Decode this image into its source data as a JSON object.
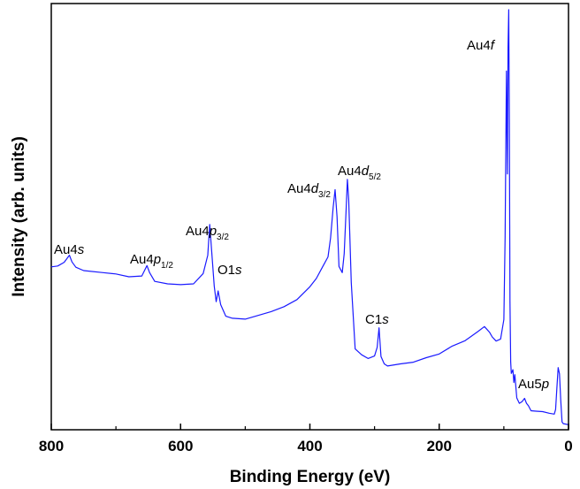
{
  "chart_data": {
    "type": "line",
    "xlabel": "Binding Energy (eV)",
    "ylabel": "Intensity (arb. units)",
    "xlim": [
      800,
      0
    ],
    "x_reversed": true,
    "ylim": [
      0,
      100
    ],
    "y_ticks_shown": false,
    "grid": false,
    "x_ticks": [
      800,
      600,
      400,
      200,
      0
    ],
    "x_tick_labels": [
      "800",
      "600",
      "400",
      "200",
      "0"
    ],
    "series": [
      {
        "color": "#1a1aff",
        "x": [
          800,
          790,
          780,
          772,
          768,
          762,
          750,
          720,
          700,
          680,
          660,
          652,
          648,
          640,
          620,
          600,
          580,
          565,
          558,
          555,
          552,
          548,
          545,
          542,
          538,
          530,
          520,
          500,
          480,
          460,
          440,
          420,
          400,
          390,
          380,
          372,
          368,
          364,
          361,
          358,
          355,
          350,
          347,
          344,
          342,
          340,
          336,
          330,
          320,
          310,
          300,
          296,
          293,
          290,
          285,
          280,
          260,
          240,
          220,
          200,
          180,
          160,
          140,
          130,
          122,
          118,
          112,
          105,
          100,
          98,
          96,
          94.5,
          93.5,
          92.5,
          91.5,
          90.5,
          89.5,
          88.5,
          86,
          84.5,
          83,
          80,
          76,
          72,
          68,
          65,
          62,
          58,
          50,
          40,
          30,
          22,
          20,
          18,
          16,
          14,
          12,
          10,
          8,
          5,
          2,
          0
        ],
        "y": [
          38.0,
          38.2,
          39.1,
          40.8,
          39.2,
          37.9,
          37.1,
          36.6,
          36.3,
          35.6,
          35.8,
          38.3,
          36.6,
          34.5,
          33.9,
          33.7,
          33.9,
          36.4,
          40.8,
          48.2,
          42.1,
          33.4,
          29.6,
          32.2,
          28.9,
          26.1,
          25.6,
          25.4,
          26.3,
          27.2,
          28.4,
          30.1,
          33.2,
          35.2,
          38.1,
          40.4,
          45.0,
          52.3,
          56.6,
          50.1,
          38.1,
          36.6,
          41.2,
          51.4,
          59.1,
          54.2,
          34.2,
          18.2,
          16.8,
          15.9,
          16.5,
          18.6,
          23.3,
          16.4,
          14.6,
          14.1,
          14.6,
          15.0,
          16.1,
          17.0,
          18.9,
          20.2,
          22.4,
          23.6,
          22.2,
          21.1,
          20.1,
          20.6,
          25.3,
          45.2,
          85.2,
          60.4,
          90.8,
          100.0,
          72.4,
          29.6,
          15.1,
          12.3,
          13.2,
          10.1,
          12.0,
          6.4,
          5.1,
          5.5,
          6.3,
          5.1,
          4.5,
          3.3,
          3.2,
          3.1,
          2.7,
          2.5,
          3.6,
          8.6,
          13.7,
          12.2,
          5.9,
          0.6,
          0.2,
          0.1,
          0.0,
          0.0
        ]
      }
    ],
    "annotations": [
      {
        "id": "au4s",
        "x": 772,
        "main": "Au4",
        "italic": "s",
        "sub": ""
      },
      {
        "id": "au4p12",
        "x": 650,
        "main": "Au4",
        "italic": "p",
        "sub": "1/2"
      },
      {
        "id": "au4p32",
        "x": 555,
        "main": "Au4",
        "italic": "p",
        "sub": "3/2"
      },
      {
        "id": "o1s",
        "x": 540,
        "main": "O1",
        "italic": "s",
        "sub": ""
      },
      {
        "id": "au4d32",
        "x": 360,
        "main": "Au4",
        "italic": "d",
        "sub": "3/2"
      },
      {
        "id": "au4d52",
        "x": 344,
        "main": "Au4",
        "italic": "d",
        "sub": "5/2"
      },
      {
        "id": "c1s",
        "x": 293,
        "main": "C1",
        "italic": "s",
        "sub": ""
      },
      {
        "id": "au4f",
        "x": 92,
        "main": "Au4",
        "italic": "f",
        "sub": ""
      },
      {
        "id": "au5p",
        "x": 60,
        "main": "Au5",
        "italic": "p",
        "sub": ""
      }
    ]
  }
}
